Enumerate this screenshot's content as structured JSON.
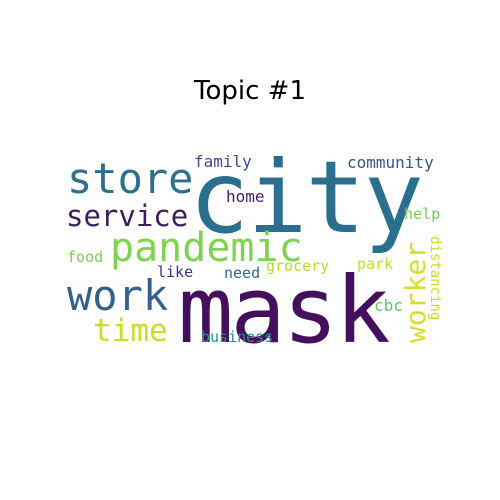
{
  "title": "Topic #1",
  "words": [
    {
      "text": "city",
      "color": "#2b6f8f"
    },
    {
      "text": "mask",
      "color": "#440f5c"
    },
    {
      "text": "pandemic",
      "color": "#7fd34e"
    },
    {
      "text": "store",
      "color": "#2f6f8e"
    },
    {
      "text": "work",
      "color": "#355f8d"
    },
    {
      "text": "service",
      "color": "#3a1f5d"
    },
    {
      "text": "time",
      "color": "#c9de2a"
    },
    {
      "text": "worker",
      "color": "#d6e02a"
    },
    {
      "text": "family",
      "color": "#3f4c8a"
    },
    {
      "text": "community",
      "color": "#3b528b"
    },
    {
      "text": "home",
      "color": "#481a6c"
    },
    {
      "text": "help",
      "color": "#74d055"
    },
    {
      "text": "food",
      "color": "#7ad151"
    },
    {
      "text": "like",
      "color": "#472d7b"
    },
    {
      "text": "need",
      "color": "#31688e"
    },
    {
      "text": "grocery",
      "color": "#b5de2b"
    },
    {
      "text": "park",
      "color": "#c2df23"
    },
    {
      "text": "distancing",
      "color": "#c8e020"
    },
    {
      "text": "cbc",
      "color": "#5ec962"
    },
    {
      "text": "business",
      "color": "#20928c"
    }
  ]
}
